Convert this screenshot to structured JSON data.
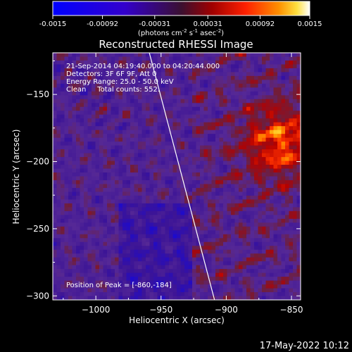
{
  "chart_data": {
    "type": "heatmap",
    "title": "Reconstructed RHESSI Image",
    "xlabel": "Heliocentric X (arcsec)",
    "ylabel": "Heliocentric Y (arcsec)",
    "xlim": [
      -1033,
      -843
    ],
    "ylim": [
      -303,
      -119
    ],
    "x_ticks": [
      -1000,
      -950,
      -900,
      -850
    ],
    "y_ticks": [
      -150,
      -200,
      -250,
      -300
    ],
    "colorbar": {
      "min": -0.0015,
      "max": 0.0015,
      "ticks": [
        "-0.0015",
        "-0.00092",
        "-0.00031",
        "0.00031",
        "0.00092",
        "0.0015"
      ],
      "tick_values": [
        -0.0015,
        -0.00092,
        -0.00031,
        0.00031,
        0.00092,
        0.0015
      ],
      "label_base": "(photons cm",
      "label_exp1": "-2",
      "label_mid": " s",
      "label_exp2": "-1",
      "label_mid2": " asec",
      "label_exp3": "-2",
      "label_end": ")"
    },
    "info_lines": [
      "21-Sep-2014 04:19:40.000 to 04:20:44.000",
      "Detectors: 3F 6F 9F, Att 0",
      "Energy Range: 25.0 - 50.0 keV",
      "Clean     Total counts: 552."
    ],
    "peak_label": "Position of Peak = [-860,-184]",
    "peak": [
      -860,
      -184
    ],
    "limb_line": [
      [
        -959,
        -119
      ],
      [
        -909,
        -303
      ]
    ],
    "grid": false
  },
  "footer": {
    "timestamp": "17-May-2022 10:12"
  }
}
